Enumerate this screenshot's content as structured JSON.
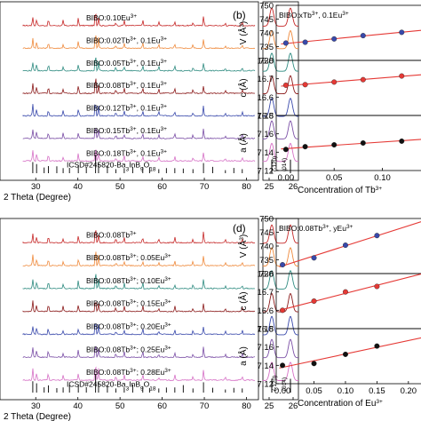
{
  "panels": {
    "a": {
      "labels": [
        {
          "text": "BIBO:0.10Eu",
          "sup": "3+",
          "color": "#c62828"
        },
        {
          "text": "BIBO:0.02Tb",
          "sup": "3+",
          "tail": ", 0.1Eu",
          "tailsup": "3+",
          "color": "#ef8a3c"
        },
        {
          "text": "BIBO:0.05Tb",
          "sup": "3+",
          "tail": ", 0.1Eu",
          "tailsup": "3+",
          "color": "#2e8b80"
        },
        {
          "text": "BIBO:0.08Tb",
          "sup": "3+",
          "tail": ", 0.1Eu",
          "tailsup": "3+",
          "color": "#8b1a1a"
        },
        {
          "text": "BIBO:0.12Tb",
          "sup": "3+",
          "tail": ", 0.1Eu",
          "tailsup": "3+",
          "color": "#3949ab"
        },
        {
          "text": "BIBO:0.15Tb",
          "sup": "3+",
          "tail": ", 0.1Eu",
          "tailsup": "3+",
          "color": "#7b4fa6"
        },
        {
          "text": "BIBO:0.18Tb",
          "sup": "3+",
          "tail": ", 0.1Eu",
          "tailsup": "3+",
          "color": "#d671c6"
        }
      ],
      "reference": "ICSD#245820-Ba3InB9O18",
      "ref_main": "ICSD#245820-Ba",
      "ref_parts": [
        [
          "3",
          true
        ],
        [
          "InB",
          false
        ],
        [
          "9",
          true
        ],
        [
          "O",
          false
        ],
        [
          "18",
          true
        ]
      ],
      "xlabel": "2 Theta (Degree)",
      "xticks": [
        "30",
        "40",
        "50",
        "60",
        "70",
        "80"
      ],
      "zoom_xticks": [
        "25",
        "26"
      ],
      "hkl": [
        "(-120)",
        "(014)"
      ]
    },
    "c": {
      "labels": [
        {
          "text": "BIBO:0.08Tb",
          "sup": "3+",
          "color": "#c62828"
        },
        {
          "text": "BIBO:0.08Tb",
          "sup": "3+",
          "tail": "; 0.05Eu",
          "tailsup": "3+",
          "color": "#ef8a3c"
        },
        {
          "text": "BIBO:0.08Tb",
          "sup": "3+",
          "tail": "; 0.10Eu",
          "tailsup": "3+",
          "color": "#2e8b80"
        },
        {
          "text": "BIBO:0.08Tb",
          "sup": "3+",
          "tail": "; 0.15Eu",
          "tailsup": "3+",
          "color": "#8b1a1a"
        },
        {
          "text": "BIBO:0.08Tb",
          "sup": "3+",
          "tail": "; 0.20Eu",
          "tailsup": "3+",
          "color": "#3949ab"
        },
        {
          "text": "BIBO:0.08Tb",
          "sup": "3+",
          "tail": "; 0.25Eu",
          "tailsup": "3+",
          "color": "#7b4fa6"
        },
        {
          "text": "BIBO:0.08Tb",
          "sup": "3+",
          "tail": "; 0.28Eu",
          "tailsup": "3+",
          "color": "#d671c6"
        }
      ],
      "reference": "ICSD#245820-Ba3InB9O18",
      "ref_main": "ICSD#245820-Ba",
      "ref_parts": [
        [
          "3",
          true
        ],
        [
          "InB",
          false
        ],
        [
          "9",
          true
        ],
        [
          "O",
          false
        ],
        [
          "18",
          true
        ]
      ],
      "xlabel": "2 Theta (Degree)",
      "xticks": [
        "30",
        "40",
        "50",
        "60",
        "70",
        "80"
      ],
      "zoom_xticks": [
        "25",
        "26"
      ],
      "hkl": [
        "(-120)",
        "(014)"
      ]
    }
  },
  "chart_data": [
    {
      "panel": "b",
      "type": "scatter",
      "title": "BIBO:xTb3+, 0.1Eu3+",
      "xlabel": "Concentration of Tb3+",
      "xticks": [
        "0.00",
        "0.05",
        "0.10"
      ],
      "xlim": [
        -0.01,
        0.14
      ],
      "subplots": [
        {
          "ylabel": "V (Å3)",
          "ylim": [
            730,
            750
          ],
          "yticks": [
            "730",
            "735",
            "740",
            "745",
            "750"
          ],
          "color": "#3949ab",
          "x": [
            0.0,
            0.02,
            0.05,
            0.08,
            0.12
          ],
          "y": [
            736.3,
            736.6,
            737.8,
            739.0,
            740.2
          ]
        },
        {
          "ylabel": "c (Å)",
          "ylim": [
            16.5,
            16.8
          ],
          "yticks": [
            "16.5",
            "16.6",
            "16.7",
            "16.8"
          ],
          "color": "#e53935",
          "x": [
            0.0,
            0.02,
            0.05,
            0.08,
            0.12
          ],
          "y": [
            16.665,
            16.668,
            16.682,
            16.695,
            16.715
          ]
        },
        {
          "ylabel": "a (Å)",
          "ylim": [
            7.12,
            7.18
          ],
          "yticks": [
            "7.12",
            "7.14",
            "7.16",
            "7.18"
          ],
          "color": "#111111",
          "x": [
            0.0,
            0.02,
            0.05,
            0.08,
            0.12
          ],
          "y": [
            7.143,
            7.146,
            7.148,
            7.15,
            7.152
          ]
        }
      ]
    },
    {
      "panel": "d",
      "type": "scatter",
      "title": "BIBO:0.08Tb3+, yEu3+",
      "xlabel": "Concentration of Eu3+",
      "xticks": [
        "0.00",
        "0.05",
        "0.10",
        "0.15",
        "0.20"
      ],
      "xlim": [
        -0.01,
        0.22
      ],
      "subplots": [
        {
          "ylabel": "V (Å3)",
          "ylim": [
            730,
            750
          ],
          "yticks": [
            "730",
            "735",
            "740",
            "745",
            "750"
          ],
          "color": "#3949ab",
          "x": [
            0.0,
            0.05,
            0.1,
            0.15
          ],
          "y": [
            733.2,
            735.7,
            740.3,
            743.8
          ]
        },
        {
          "ylabel": "c (Å)",
          "ylim": [
            16.5,
            16.8
          ],
          "yticks": [
            "16.5",
            "16.6",
            "16.7",
            "16.8"
          ],
          "color": "#e53935",
          "x": [
            0.0,
            0.05,
            0.1,
            0.15
          ],
          "y": [
            16.6,
            16.65,
            16.7,
            16.73
          ]
        },
        {
          "ylabel": "a (Å)",
          "ylim": [
            7.12,
            7.18
          ],
          "yticks": [
            "7.12",
            "7.14",
            "7.16",
            "7.18"
          ],
          "color": "#111111",
          "x": [
            0.0,
            0.05,
            0.1,
            0.15
          ],
          "y": [
            7.14,
            7.142,
            7.152,
            7.161
          ]
        }
      ]
    }
  ]
}
